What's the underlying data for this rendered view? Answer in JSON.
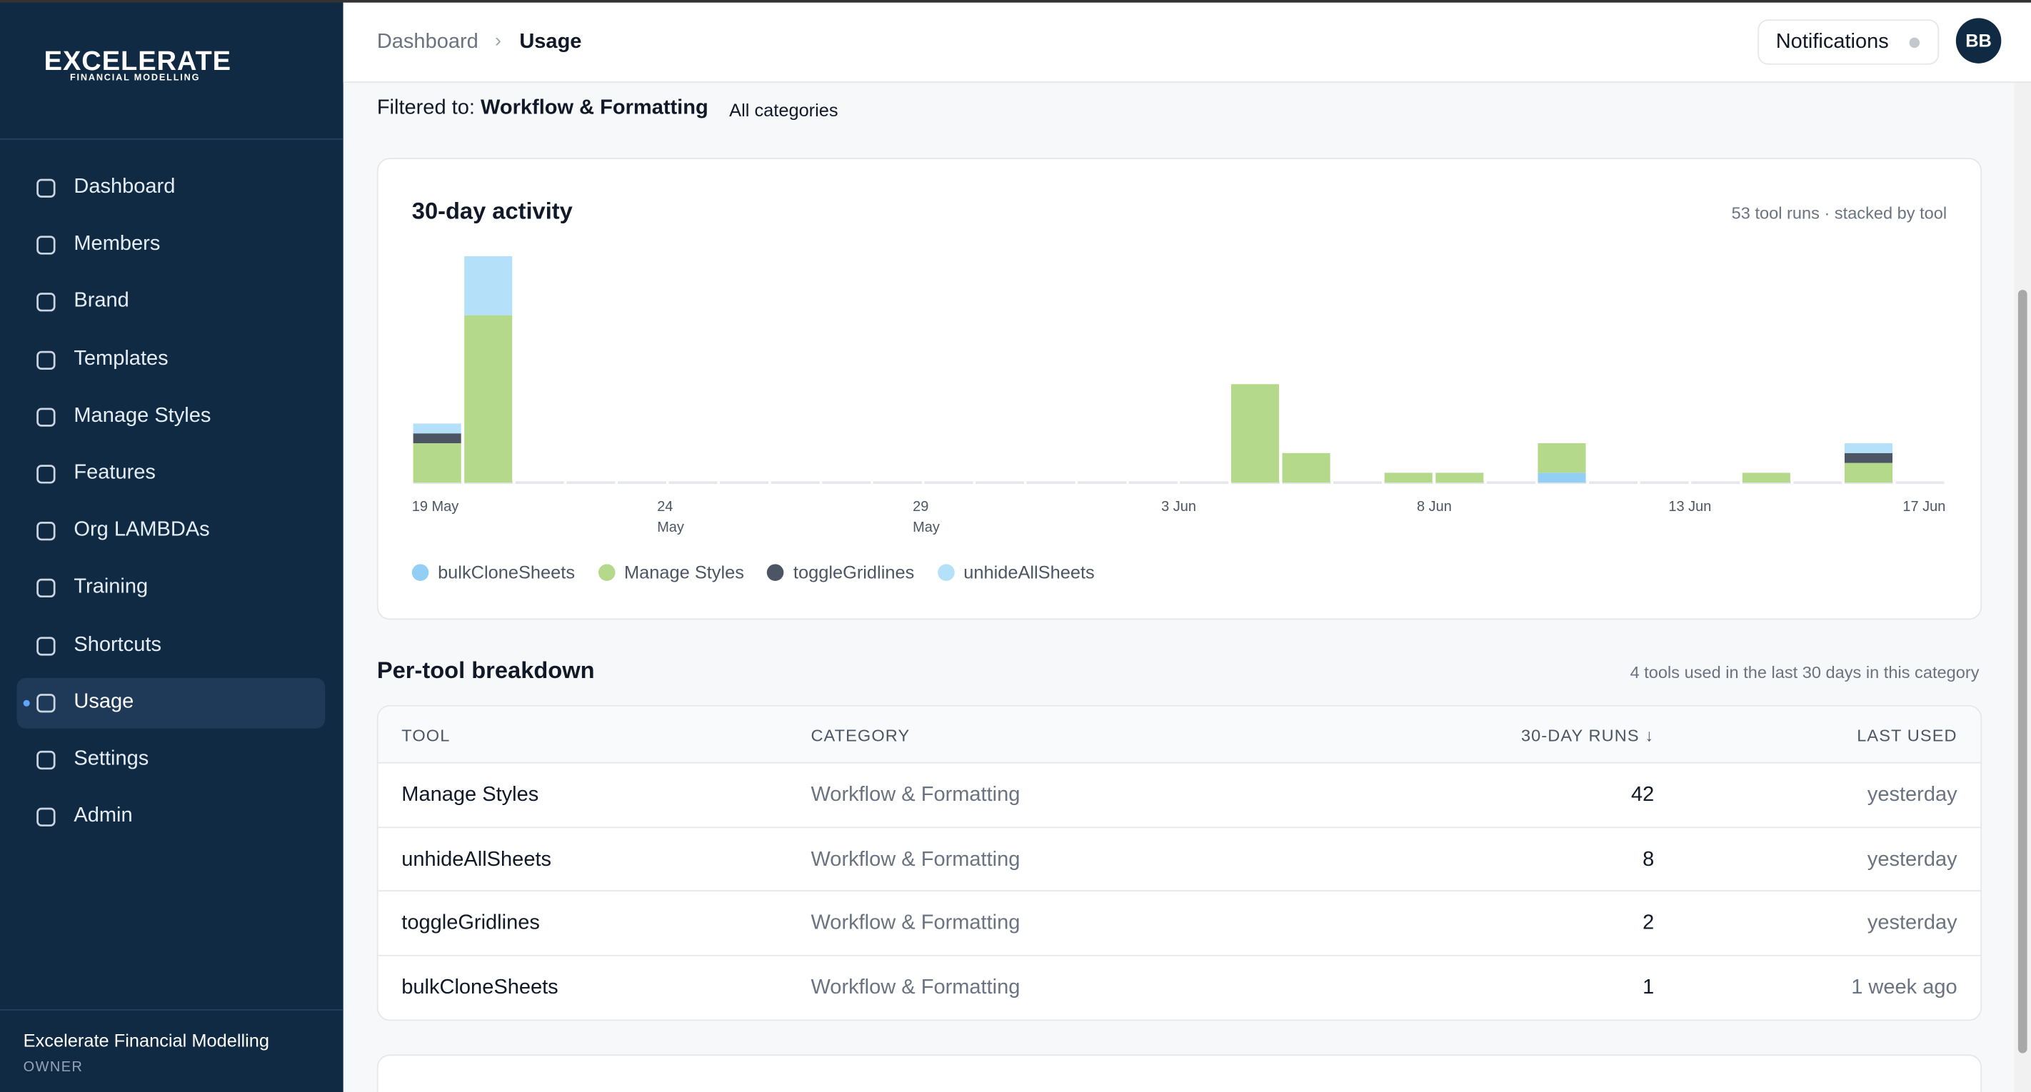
{
  "sidebar": {
    "logo": "EXCELERATE",
    "logo_sub": "FINANCIAL MODELLING",
    "nav": [
      "Dashboard",
      "Members",
      "Brand",
      "Templates",
      "Manage Styles",
      "Features",
      "Org LAMBDAs",
      "Training",
      "Shortcuts",
      "Usage",
      "Settings",
      "Admin"
    ],
    "active": 9,
    "org": "Excelerate Financial Modelling",
    "role": "OWNER"
  },
  "header": {
    "breadcrumb": [
      "Dashboard",
      "Usage"
    ],
    "notifications": "Notifications",
    "avatar": "BB"
  },
  "filter": {
    "label": "Filtered to:",
    "value": "Workflow & Formatting",
    "reset": "All categories"
  },
  "chart_data": {
    "type": "bar",
    "stacked": true,
    "title": "30-day activity",
    "subtitle": "53 tool runs · stacked by tool",
    "categories": [
      "19 May",
      null,
      null,
      null,
      null,
      "24 May",
      null,
      null,
      null,
      null,
      "29 May",
      null,
      null,
      null,
      null,
      "3 Jun",
      null,
      null,
      null,
      null,
      "8 Jun",
      null,
      null,
      null,
      null,
      "13 Jun",
      null,
      null,
      null,
      "17 Jun"
    ],
    "series": [
      {
        "name": "bulkCloneSheets",
        "color": "#93cff5",
        "values": [
          0,
          0,
          0,
          0,
          0,
          0,
          0,
          0,
          0,
          0,
          0,
          0,
          0,
          0,
          0,
          0,
          0,
          0,
          0,
          0,
          0,
          0,
          1,
          0,
          0,
          0,
          0,
          0,
          0,
          0
        ]
      },
      {
        "name": "Manage Styles",
        "color": "#b5d98a",
        "values": [
          4,
          17,
          0,
          0,
          0,
          0,
          0,
          0,
          0,
          0,
          0,
          0,
          0,
          0,
          0,
          0,
          10,
          3,
          0,
          1,
          1,
          0,
          3,
          0,
          0,
          0,
          1,
          0,
          2,
          0
        ]
      },
      {
        "name": "toggleGridlines",
        "color": "#4b5563",
        "values": [
          1,
          0,
          0,
          0,
          0,
          0,
          0,
          0,
          0,
          0,
          0,
          0,
          0,
          0,
          0,
          0,
          0,
          0,
          0,
          0,
          0,
          0,
          0,
          0,
          0,
          0,
          0,
          0,
          1,
          0
        ]
      },
      {
        "name": "unhideAllSheets",
        "color": "#b4e0fa",
        "values": [
          1,
          6,
          0,
          0,
          0,
          0,
          0,
          0,
          0,
          0,
          0,
          0,
          0,
          0,
          0,
          0,
          0,
          0,
          0,
          0,
          0,
          0,
          0,
          0,
          0,
          0,
          0,
          0,
          1,
          0
        ]
      }
    ],
    "legend": "bottom-left"
  },
  "table": {
    "title": "Per-tool breakdown",
    "subtitle": "4 tools used in the last 30 days in this category",
    "columns": [
      "TOOL",
      "CATEGORY",
      "30-DAY RUNS ↓",
      "LAST USED"
    ],
    "rows": [
      [
        "Manage Styles",
        "Workflow & Formatting",
        42,
        "yesterday"
      ],
      [
        "unhideAllSheets",
        "Workflow & Formatting",
        8,
        "yesterday"
      ],
      [
        "toggleGridlines",
        "Workflow & Formatting",
        2,
        "yesterday"
      ],
      [
        "bulkCloneSheets",
        "Workflow & Formatting",
        1,
        "1 week ago"
      ]
    ]
  }
}
